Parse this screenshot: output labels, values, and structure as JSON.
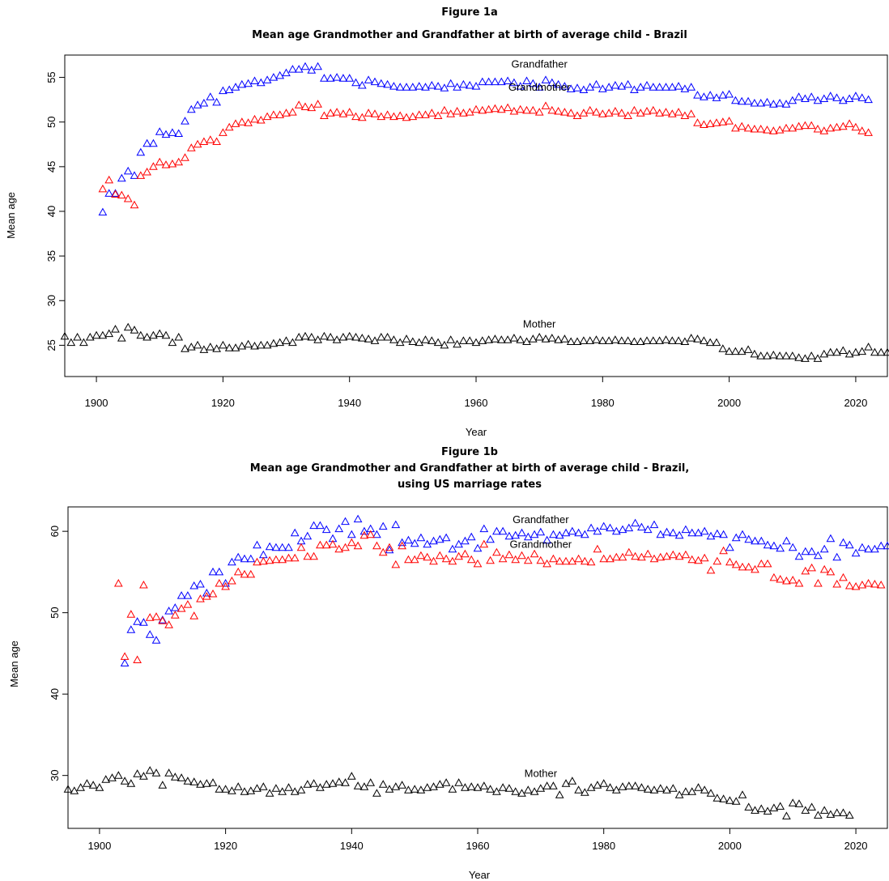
{
  "chart_data": [
    {
      "type": "scatter",
      "figure_label": "Figure 1a",
      "title": "Mean age Grandmother and Grandfather at birth of average child - Brazil",
      "xlabel": "Year",
      "ylabel": "Mean age",
      "xlim": [
        1895,
        2025
      ],
      "ylim": [
        21.5,
        57.5
      ],
      "x_ticks": [
        1900,
        1920,
        1940,
        1960,
        1980,
        2000,
        2020
      ],
      "y_ticks": [
        25,
        30,
        35,
        40,
        45,
        50,
        55
      ],
      "marker": "triangle-open",
      "annotations": [
        {
          "text": "Grandfather",
          "x": 1970,
          "y": 56.1
        },
        {
          "text": "Grandmother",
          "x": 1970,
          "y": 53.5
        },
        {
          "text": "Mother",
          "x": 1970,
          "y": 27.0
        }
      ],
      "series": [
        {
          "name": "Grandfather",
          "color": "#0000ff",
          "x_start": 1901,
          "values": [
            39.9,
            42.0,
            42.0,
            43.7,
            44.5,
            44.0,
            46.6,
            47.6,
            47.6,
            48.9,
            48.6,
            48.8,
            48.7,
            50.1,
            51.4,
            51.9,
            52.1,
            52.8,
            52.2,
            53.5,
            53.6,
            53.9,
            54.2,
            54.3,
            54.6,
            54.4,
            54.7,
            55.0,
            55.2,
            55.5,
            55.9,
            55.9,
            56.2,
            55.8,
            56.2,
            54.9,
            54.9,
            55.0,
            54.9,
            54.9,
            54.4,
            54.1,
            54.7,
            54.5,
            54.3,
            54.2,
            54.0,
            53.9,
            53.9,
            53.9,
            54.0,
            53.9,
            54.1,
            54.0,
            53.8,
            54.3,
            53.9,
            54.2,
            54.1,
            54.0,
            54.5,
            54.5,
            54.5,
            54.5,
            54.6,
            54.4,
            54.0,
            54.6,
            54.3,
            53.9,
            54.7,
            54.4,
            54.2,
            54.0,
            53.7,
            53.8,
            53.6,
            53.9,
            54.2,
            53.7,
            53.9,
            54.1,
            54.0,
            54.2,
            53.6,
            53.9,
            54.1,
            53.9,
            53.9,
            53.9,
            53.9,
            54.0,
            53.7,
            53.9,
            53.0,
            52.8,
            53.0,
            52.7,
            53.0,
            53.1,
            52.4,
            52.3,
            52.3,
            52.1,
            52.1,
            52.2,
            52.0,
            52.1,
            52.0,
            52.4,
            52.8,
            52.6,
            52.8,
            52.4,
            52.6,
            52.9,
            52.7,
            52.4,
            52.6,
            52.9,
            52.7,
            52.5
          ]
        },
        {
          "name": "Grandmother",
          "color": "#ff0000",
          "x_start": 1901,
          "values": [
            42.5,
            43.5,
            41.9,
            41.8,
            41.4,
            40.7,
            44.0,
            44.4,
            45.0,
            45.5,
            45.2,
            45.3,
            45.5,
            46.0,
            47.1,
            47.5,
            47.8,
            48.0,
            47.8,
            48.8,
            49.4,
            49.8,
            50.0,
            49.9,
            50.3,
            50.2,
            50.6,
            50.8,
            50.8,
            51.0,
            51.1,
            51.9,
            51.7,
            51.6,
            52.0,
            50.7,
            51.0,
            51.1,
            50.9,
            51.1,
            50.6,
            50.5,
            51.0,
            50.9,
            50.6,
            50.8,
            50.6,
            50.7,
            50.5,
            50.6,
            50.8,
            50.8,
            51.0,
            50.7,
            51.3,
            50.9,
            51.2,
            51.0,
            51.1,
            51.4,
            51.3,
            51.4,
            51.5,
            51.4,
            51.6,
            51.2,
            51.4,
            51.3,
            51.3,
            51.1,
            51.8,
            51.3,
            51.2,
            51.1,
            51.0,
            50.7,
            51.0,
            51.3,
            51.1,
            50.9,
            51.0,
            51.2,
            51.0,
            50.7,
            51.3,
            51.0,
            51.2,
            51.3,
            51.0,
            51.1,
            50.9,
            51.1,
            50.7,
            50.9,
            49.9,
            49.7,
            49.8,
            49.9,
            50.0,
            50.1,
            49.3,
            49.5,
            49.3,
            49.2,
            49.2,
            49.1,
            49.0,
            49.1,
            49.3,
            49.3,
            49.5,
            49.6,
            49.6,
            49.2,
            49.0,
            49.3,
            49.4,
            49.5,
            49.8,
            49.4,
            49.0,
            48.8
          ]
        },
        {
          "name": "Mother",
          "color": "#000000",
          "x_start": 1895,
          "values": [
            26.0,
            25.3,
            25.9,
            25.3,
            25.9,
            26.1,
            26.1,
            26.3,
            26.8,
            25.8,
            27.0,
            26.7,
            26.1,
            25.9,
            26.1,
            26.3,
            26.1,
            25.3,
            25.9,
            24.6,
            24.8,
            25.0,
            24.5,
            24.8,
            24.6,
            25.0,
            24.7,
            24.7,
            24.9,
            25.1,
            24.9,
            25.0,
            25.0,
            25.2,
            25.3,
            25.5,
            25.3,
            25.9,
            26.0,
            25.9,
            25.6,
            26.0,
            25.9,
            25.6,
            25.9,
            26.0,
            25.9,
            25.8,
            25.7,
            25.5,
            25.9,
            25.9,
            25.6,
            25.3,
            25.7,
            25.4,
            25.3,
            25.6,
            25.5,
            25.3,
            25.0,
            25.6,
            25.1,
            25.5,
            25.5,
            25.3,
            25.5,
            25.6,
            25.7,
            25.6,
            25.6,
            25.8,
            25.6,
            25.4,
            25.7,
            25.9,
            25.7,
            25.8,
            25.6,
            25.7,
            25.4,
            25.4,
            25.5,
            25.5,
            25.6,
            25.5,
            25.5,
            25.6,
            25.5,
            25.5,
            25.4,
            25.4,
            25.5,
            25.5,
            25.5,
            25.6,
            25.5,
            25.5,
            25.4,
            25.8,
            25.7,
            25.5,
            25.3,
            25.3,
            24.6,
            24.3,
            24.3,
            24.3,
            24.5,
            24.0,
            23.8,
            23.8,
            23.9,
            23.8,
            23.8,
            23.8,
            23.6,
            23.5,
            23.8,
            23.5,
            24.0,
            24.2,
            24.2,
            24.4,
            24.0,
            24.2,
            24.3,
            24.8,
            24.2,
            24.2,
            24.2,
            24.6,
            24.5,
            24.2
          ]
        }
      ]
    },
    {
      "type": "scatter",
      "figure_label": "Figure 1b",
      "title": "Mean age Grandmother and Grandfather at birth of average child - Brazil,",
      "title_line2": "using US marriage rates",
      "xlabel": "Year",
      "ylabel": "Mean age",
      "xlim": [
        1895,
        2025
      ],
      "ylim": [
        23.5,
        63.0
      ],
      "x_ticks": [
        1900,
        1920,
        1940,
        1960,
        1980,
        2000,
        2020
      ],
      "y_ticks": [
        30,
        40,
        50,
        60
      ],
      "marker": "triangle-open",
      "annotations": [
        {
          "text": "Grandfather",
          "x": 1970,
          "y": 61.0
        },
        {
          "text": "Grandmother",
          "x": 1970,
          "y": 58.0
        },
        {
          "text": "Mother",
          "x": 1970,
          "y": 29.8
        }
      ],
      "series": [
        {
          "name": "Grandfather",
          "color": "#0000ff",
          "x_start": 1904,
          "values": [
            43.8,
            47.9,
            48.9,
            48.8,
            47.3,
            46.6,
            49.1,
            50.2,
            50.6,
            52.1,
            52.1,
            53.3,
            53.5,
            52.4,
            55.0,
            55.0,
            53.6,
            56.2,
            56.8,
            56.6,
            56.6,
            58.3,
            57.1,
            58.1,
            58.0,
            58.0,
            58.0,
            59.8,
            58.8,
            59.4,
            60.7,
            60.7,
            60.2,
            59.1,
            60.3,
            61.2,
            59.6,
            61.5,
            60.0,
            60.3,
            59.6,
            60.6,
            57.7,
            60.8,
            58.6,
            58.9,
            58.5,
            59.2,
            58.4,
            58.8,
            59.0,
            59.2,
            57.8,
            58.4,
            58.8,
            59.3,
            57.9,
            60.3,
            59.0,
            60.0,
            60.0,
            59.4,
            59.5,
            59.8,
            59.3,
            59.6,
            59.9,
            58.9,
            59.6,
            59.5,
            59.8,
            60.0,
            59.8,
            59.6,
            60.4,
            60.0,
            60.6,
            60.4,
            60.0,
            60.2,
            60.4,
            61.0,
            60.5,
            60.2,
            60.8,
            59.6,
            59.9,
            59.8,
            59.5,
            60.2,
            59.8,
            59.8,
            60.0,
            59.4,
            59.7,
            59.6,
            58.0,
            59.2,
            59.6,
            59.0,
            58.8,
            58.8,
            58.3,
            58.2,
            57.9,
            58.8,
            58.0,
            56.9,
            57.5,
            57.5,
            57.0,
            57.8,
            59.1,
            56.8,
            58.6,
            58.3,
            57.3,
            58.0,
            57.8,
            57.8,
            58.2,
            58.2,
            59.6
          ]
        },
        {
          "name": "Grandmother",
          "color": "#ff0000",
          "x_start": 1903,
          "values": [
            53.6,
            44.6,
            49.8,
            44.2,
            53.4,
            49.4,
            49.5,
            49.0,
            48.5,
            49.7,
            50.5,
            51.0,
            49.6,
            51.7,
            52.0,
            52.3,
            53.6,
            53.2,
            53.9,
            55.0,
            54.7,
            54.7,
            56.2,
            56.3,
            56.4,
            56.5,
            56.5,
            56.7,
            56.7,
            58.0,
            56.9,
            56.9,
            58.3,
            58.3,
            58.4,
            57.8,
            58.0,
            58.6,
            58.2,
            59.5,
            59.6,
            58.2,
            57.4,
            58.0,
            55.9,
            58.2,
            56.5,
            56.5,
            57.0,
            56.8,
            56.3,
            57.0,
            56.6,
            56.3,
            56.9,
            57.2,
            56.5,
            56.0,
            58.4,
            56.4,
            57.4,
            56.6,
            57.1,
            56.5,
            57.0,
            56.4,
            57.2,
            56.4,
            56.0,
            56.6,
            56.3,
            56.3,
            56.3,
            56.6,
            56.3,
            56.2,
            57.8,
            56.6,
            56.6,
            56.8,
            56.8,
            57.4,
            56.9,
            56.8,
            57.2,
            56.6,
            56.8,
            56.9,
            57.1,
            56.9,
            57.1,
            56.5,
            56.4,
            56.7,
            55.2,
            56.3,
            57.6,
            56.2,
            55.9,
            55.6,
            55.6,
            55.3,
            56.0,
            56.0,
            54.3,
            54.1,
            53.9,
            54.0,
            53.6,
            55.1,
            55.5,
            53.6,
            55.3,
            55.0,
            53.5,
            54.3,
            53.3,
            53.2,
            53.4,
            53.6,
            53.5,
            53.4
          ]
        },
        {
          "name": "Mother",
          "color": "#000000",
          "x_start": 1895,
          "values": [
            28.3,
            28.1,
            28.5,
            29.0,
            28.8,
            28.5,
            29.5,
            29.7,
            30.0,
            29.3,
            29.0,
            30.2,
            29.9,
            30.6,
            30.3,
            28.8,
            30.3,
            29.8,
            29.7,
            29.3,
            29.2,
            28.9,
            29.0,
            29.1,
            28.3,
            28.3,
            28.1,
            28.6,
            28.0,
            28.1,
            28.4,
            28.6,
            27.8,
            28.4,
            28.0,
            28.5,
            28.0,
            28.2,
            28.9,
            29.0,
            28.5,
            28.9,
            29.0,
            29.2,
            29.1,
            29.9,
            28.7,
            28.6,
            29.1,
            27.8,
            28.9,
            28.3,
            28.6,
            28.8,
            28.2,
            28.3,
            28.2,
            28.5,
            28.6,
            28.9,
            29.1,
            28.3,
            29.1,
            28.5,
            28.6,
            28.5,
            28.7,
            28.3,
            28.0,
            28.5,
            28.4,
            28.0,
            27.8,
            28.2,
            28.0,
            28.4,
            28.7,
            28.7,
            27.6,
            29.0,
            29.3,
            28.2,
            27.9,
            28.5,
            28.8,
            29.0,
            28.5,
            28.2,
            28.6,
            28.7,
            28.7,
            28.5,
            28.3,
            28.2,
            28.4,
            28.2,
            28.4,
            27.6,
            28.0,
            28.0,
            28.5,
            28.2,
            27.8,
            27.2,
            27.1,
            26.9,
            26.8,
            27.6,
            26.1,
            25.7,
            25.9,
            25.6,
            26.0,
            26.2,
            25.0,
            26.6,
            26.5,
            25.7,
            26.1,
            25.1,
            25.7,
            25.2,
            25.4,
            25.4,
            25.1
          ]
        }
      ]
    }
  ]
}
